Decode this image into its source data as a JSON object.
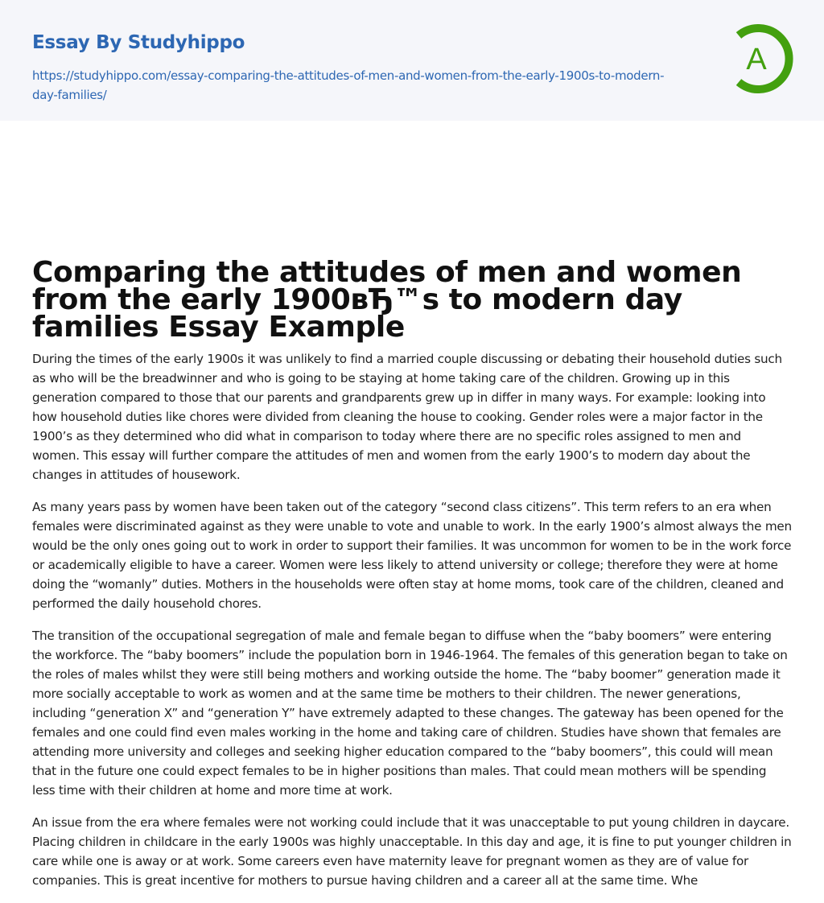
{
  "header": {
    "brand": "Essay By Studyhippo",
    "url": "https://studyhippo.com/essay-comparing-the-attitudes-of-men-and-women-from-the-early-1900s-to-modern-day-families/",
    "logo_letter": "A",
    "logo_color": "#43a00f",
    "link_color": "#2d67b3"
  },
  "title": "Comparing the attitudes of men and women from the early 1900вЂ™s to modern day families Essay Example",
  "paragraphs": [
    "During the times of the early 1900s it was unlikely to find a married couple discussing or debating their household duties such as who will be the breadwinner and who is going to be staying at home taking care of the children. Growing up in this generation compared to those that our parents and grandparents grew up in differ in many ways. For example: looking into how household duties like chores were divided from cleaning the house to cooking. Gender roles were a major factor in the 1900’s as they determined who did what in comparison to today where there are no specific roles assigned to men and women. This essay will further compare the attitudes of men and women from the early 1900’s to modern day about the changes in attitudes of housework.",
    "As many years pass by women have been taken out of the category “second class citizens”. This term refers to an era when females were discriminated against as they were unable to vote and unable to work. In the early 1900’s almost always the men would be the only ones going out to work in order to support their families. It was uncommon for women to be in the work force or academically eligible to have a career. Women were less likely to attend university or college; therefore they were at home doing the “womanly” duties. Mothers in the households were often stay at home moms, took care of the children, cleaned and performed the daily household chores.",
    "The transition of the occupational segregation of male and female began to diffuse when the “baby boomers” were entering the workforce. The “baby boomers” include the population born in 1946-1964. The females of this generation began to take on the roles of males whilst they were still being mothers and working outside the home. The “baby boomer” generation made it more socially acceptable to work as women and at the same time be mothers to their children. The newer generations, including “generation X” and “generation Y” have extremely adapted to these changes. The gateway has been opened for the females and one could find even males working in the home and taking care of children. Studies have shown that females are attending more university and colleges and seeking higher education compared to the “baby boomers”, this could will mean that in the future one could expect females to be in higher positions than males. That could mean mothers will be spending less time with their children at home and more time at work.",
    "An issue from the era where females were not working could include that it was unacceptable to put young children in daycare. Placing children in childcare in the early 1900s was highly unacceptable. In this day and age, it is fine to put younger children in care while one is away or at work. Some careers even have maternity leave for pregnant women as they are of value for companies. This is great incentive for mothers to pursue having children and a career all at the same time. Whe"
  ]
}
